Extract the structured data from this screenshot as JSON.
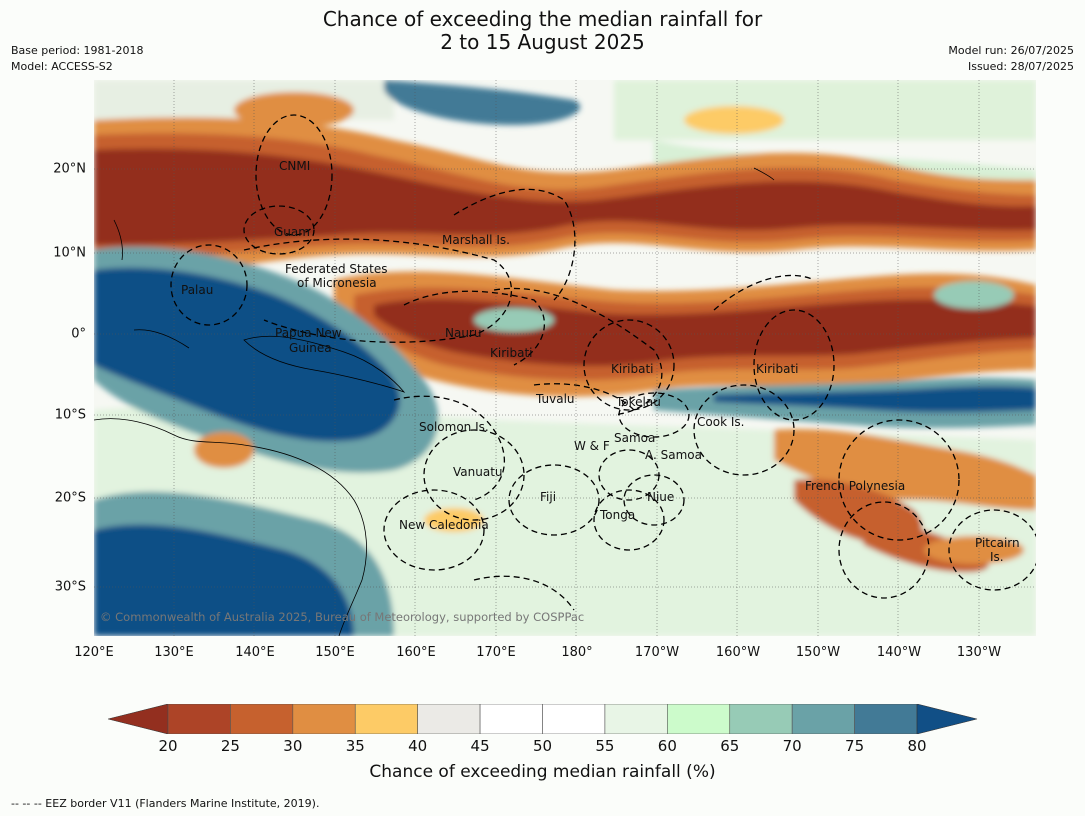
{
  "title_line1": "Chance of exceeding the median rainfall for",
  "title_line2": "2 to 15 August 2025",
  "meta": {
    "base_period": "Base period: 1981-2018",
    "model": "Model: ACCESS-S2",
    "model_run": "Model run: 26/07/2025",
    "issued": "Issued: 28/07/2025"
  },
  "lon_labels": [
    "120°E",
    "130°E",
    "140°E",
    "150°E",
    "160°E",
    "170°E",
    "180°",
    "170°W",
    "160°W",
    "150°W",
    "140°W",
    "130°W"
  ],
  "lat_labels": [
    "20°N",
    "10°N",
    "0°",
    "10°S",
    "20°S",
    "30°S"
  ],
  "places": {
    "cnmi": "CNMI",
    "guam": "Guam",
    "marshall": "Marshall Is.",
    "fsm1": "Federated States",
    "fsm2": "of Micronesia",
    "palau": "Palau",
    "png1": "Papua New",
    "png2": "Guinea",
    "nauru": "Nauru",
    "kiribati_w": "Kiribati",
    "kiribati_c": "Kiribati",
    "kiribati_e": "Kiribati",
    "tuvalu": "Tuvalu",
    "tokelau": "Tokelau",
    "cook": "Cook Is.",
    "solomon": "Solomon Is.",
    "wf": "W & F",
    "samoa": "Samoa",
    "asamoa": "A. Samoa",
    "vanuatu": "Vanuatu",
    "fiji": "Fiji",
    "niue": "Niue",
    "tonga": "Tonga",
    "frpoly": "French Polynesia",
    "pitcairn1": "Pitcairn",
    "pitcairn2": "Is.",
    "newcal": "New Caledonia"
  },
  "copyright": "© Commonwealth of Australia 2025, Bureau of Meteorology, supported by COSPPac",
  "colorbar": {
    "ticks": [
      "20",
      "25",
      "30",
      "35",
      "40",
      "45",
      "50",
      "55",
      "60",
      "65",
      "70",
      "75",
      "80"
    ],
    "colors": [
      "#ad4427",
      "#c6612e",
      "#e08e42",
      "#fdcb66",
      "#ebeae6",
      "#ffffff",
      "#ffffff",
      "#e8f5e6",
      "#ccfbcb",
      "#97cbb6",
      "#6aa2a7",
      "#427a96"
    ],
    "under_color": "#932f1f",
    "over_color": "#114f86",
    "label": "Chance of exceeding median rainfall (%)"
  },
  "footnote": "--  --  -- EEZ border V11 (Flanders Marine Institute, 2019)."
}
